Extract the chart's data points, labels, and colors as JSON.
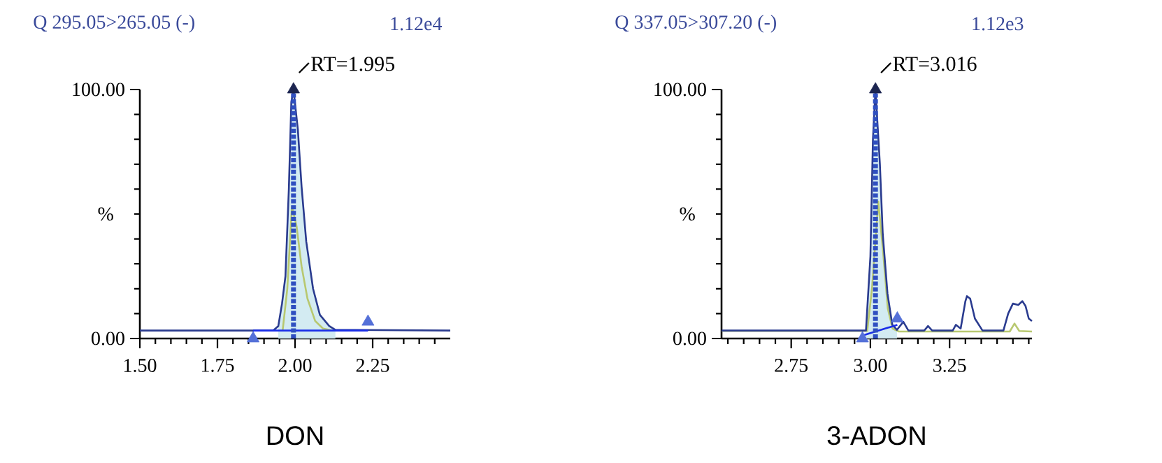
{
  "chart_data": [
    {
      "type": "line",
      "title": "Q 295.05>265.05 (-)",
      "subtitle": "1.12e4",
      "xlabel": "DON",
      "ylabel": "%",
      "xlim": [
        1.5,
        2.5
      ],
      "ylim": [
        0,
        100
      ],
      "xticks": [
        {
          "value": 1.5,
          "label": "1.50"
        },
        {
          "value": 1.55,
          "label": null
        },
        {
          "value": 1.6,
          "label": null
        },
        {
          "value": 1.65,
          "label": null
        },
        {
          "value": 1.7,
          "label": null
        },
        {
          "value": 1.75,
          "label": "1.75"
        },
        {
          "value": 1.8,
          "label": null
        },
        {
          "value": 1.85,
          "label": null
        },
        {
          "value": 1.9,
          "label": null
        },
        {
          "value": 1.95,
          "label": null
        },
        {
          "value": 2.0,
          "label": "2.00"
        },
        {
          "value": 2.05,
          "label": null
        },
        {
          "value": 2.1,
          "label": null
        },
        {
          "value": 2.15,
          "label": null
        },
        {
          "value": 2.2,
          "label": null
        },
        {
          "value": 2.25,
          "label": "2.25"
        },
        {
          "value": 2.3,
          "label": null
        },
        {
          "value": 2.35,
          "label": null
        },
        {
          "value": 2.4,
          "label": null
        },
        {
          "value": 2.45,
          "label": null
        }
      ],
      "yticks": [
        {
          "value": 0,
          "label": "0.00"
        },
        {
          "value": 10,
          "label": null
        },
        {
          "value": 20,
          "label": null
        },
        {
          "value": 30,
          "label": null
        },
        {
          "value": 40,
          "label": null
        },
        {
          "value": 50,
          "label": null
        },
        {
          "value": 60,
          "label": null
        },
        {
          "value": 70,
          "label": null
        },
        {
          "value": 80,
          "label": null
        },
        {
          "value": 90,
          "label": null
        },
        {
          "value": 100,
          "label": "100.00"
        }
      ],
      "series": [
        {
          "type": "area",
          "color": "#d3ebf2",
          "x": [
            1.946,
            1.958,
            1.969,
            1.98,
            1.988,
            1.995,
            2.009,
            2.021,
            2.036,
            2.058,
            2.08,
            2.11,
            2.13
          ],
          "values": [
            5,
            14,
            25,
            60,
            95,
            100,
            84,
            61,
            39,
            20,
            9.5,
            5,
            3.5
          ]
        },
        {
          "color": "#b8c870",
          "x": [
            1.96,
            1.975,
            1.99,
            2.005,
            2.021,
            2.04,
            2.065,
            2.09,
            2.12
          ],
          "values": [
            3.2,
            20,
            53,
            45,
            29,
            16,
            7,
            4,
            3.2
          ]
        },
        {
          "color": "#2a3b8f",
          "x": [
            1.5,
            1.93,
            1.946,
            1.958,
            1.969,
            1.98,
            1.988,
            1.995,
            2.009,
            2.021,
            2.036,
            2.058,
            2.08,
            2.11,
            2.13,
            2.5
          ],
          "values": [
            3.2,
            3.2,
            5,
            14,
            25,
            60,
            95,
            100,
            84,
            61,
            39,
            20,
            9.5,
            5,
            3.5,
            3.2
          ]
        },
        {
          "type": "line",
          "color": "#1a2ee8",
          "x": [
            1.865,
            2.235
          ],
          "values": [
            3.2,
            3.2
          ]
        },
        {
          "type": "scatter",
          "color": "#5470d8",
          "marker": "triangle",
          "x": [
            1.865,
            2.235
          ],
          "values": [
            0,
            6.7
          ]
        },
        {
          "type": "scatter",
          "color": "#1c2550",
          "marker": "triangle",
          "x": [
            1.995
          ],
          "values": [
            100
          ]
        }
      ],
      "ref_lines": [
        {
          "axis": "x",
          "value": 1.995,
          "color": "#2f4fc0",
          "line_style": "dashed"
        }
      ],
      "annotations": [
        {
          "text": "RT=1.995",
          "x": 1.995,
          "y": 100
        }
      ]
    },
    {
      "type": "line",
      "title": "Q 337.05>307.20 (-)",
      "subtitle": "1.12e3",
      "xlabel": "3-ADON",
      "ylabel": "%",
      "xlim": [
        2.53,
        3.51
      ],
      "ylim": [
        0,
        100
      ],
      "xticks": [
        {
          "value": 2.55,
          "label": null
        },
        {
          "value": 2.6,
          "label": null
        },
        {
          "value": 2.65,
          "label": null
        },
        {
          "value": 2.7,
          "label": null
        },
        {
          "value": 2.75,
          "label": "2.75"
        },
        {
          "value": 2.8,
          "label": null
        },
        {
          "value": 2.85,
          "label": null
        },
        {
          "value": 2.9,
          "label": null
        },
        {
          "value": 2.95,
          "label": null
        },
        {
          "value": 3.0,
          "label": "3.00"
        },
        {
          "value": 3.05,
          "label": null
        },
        {
          "value": 3.1,
          "label": null
        },
        {
          "value": 3.15,
          "label": null
        },
        {
          "value": 3.2,
          "label": null
        },
        {
          "value": 3.25,
          "label": "3.25"
        },
        {
          "value": 3.3,
          "label": null
        },
        {
          "value": 3.35,
          "label": null
        },
        {
          "value": 3.4,
          "label": null
        },
        {
          "value": 3.45,
          "label": null
        },
        {
          "value": 3.5,
          "label": null
        }
      ],
      "yticks": [
        {
          "value": 0,
          "label": "0.00"
        },
        {
          "value": 10,
          "label": null
        },
        {
          "value": 20,
          "label": null
        },
        {
          "value": 30,
          "label": null
        },
        {
          "value": 40,
          "label": null
        },
        {
          "value": 50,
          "label": null
        },
        {
          "value": 60,
          "label": null
        },
        {
          "value": 70,
          "label": null
        },
        {
          "value": 80,
          "label": null
        },
        {
          "value": 90,
          "label": null
        },
        {
          "value": 100,
          "label": "100.00"
        }
      ],
      "series": [
        {
          "type": "area",
          "color": "#d3ebf2",
          "x": [
            2.986,
            3.0,
            3.008,
            3.016,
            3.03,
            3.039,
            3.054,
            3.069,
            3.084
          ],
          "values": [
            3.2,
            33,
            80,
            100,
            70,
            42,
            18,
            5.6,
            3.5
          ]
        },
        {
          "color": "#b8c870",
          "x": [
            2.53,
            2.99,
            3.005,
            3.025,
            3.04,
            3.055,
            3.07,
            3.09,
            3.44,
            3.455,
            3.47,
            3.51
          ],
          "values": [
            3,
            3,
            20,
            55,
            35,
            12,
            4,
            2.8,
            2.8,
            6,
            3,
            2.8
          ]
        },
        {
          "color": "#2a3b8f",
          "x": [
            2.53,
            2.986,
            3.0,
            3.008,
            3.016,
            3.03,
            3.039,
            3.054,
            3.069,
            3.084,
            3.104,
            3.12,
            3.17,
            3.182,
            3.195,
            3.26,
            3.27,
            3.285,
            3.3,
            3.305,
            3.315,
            3.33,
            3.354,
            3.42,
            3.435,
            3.45,
            3.467,
            3.48,
            3.49,
            3.5,
            3.51
          ],
          "values": [
            3.2,
            3.2,
            33,
            80,
            100,
            70,
            42,
            18,
            5.6,
            3.5,
            6.7,
            3.2,
            3.2,
            5,
            3.2,
            3.2,
            5.5,
            4,
            15,
            17,
            16,
            8,
            3.2,
            3.2,
            10,
            14,
            13.5,
            15,
            13,
            8,
            7
          ]
        },
        {
          "type": "line",
          "color": "#1a2ee8",
          "x": [
            2.975,
            3.085
          ],
          "values": [
            1.2,
            5.5
          ]
        },
        {
          "type": "scatter",
          "color": "#5470d8",
          "marker": "triangle",
          "x": [
            2.975,
            3.085
          ],
          "values": [
            0,
            8
          ]
        },
        {
          "type": "scatter",
          "color": "#1c2550",
          "marker": "triangle",
          "x": [
            3.016
          ],
          "values": [
            100
          ]
        }
      ],
      "ref_lines": [
        {
          "axis": "x",
          "value": 3.016,
          "color": "#2f4fc0",
          "line_style": "dashed"
        }
      ],
      "annotations": [
        {
          "text": "RT=3.016",
          "x": 3.016,
          "y": 100
        }
      ]
    }
  ]
}
